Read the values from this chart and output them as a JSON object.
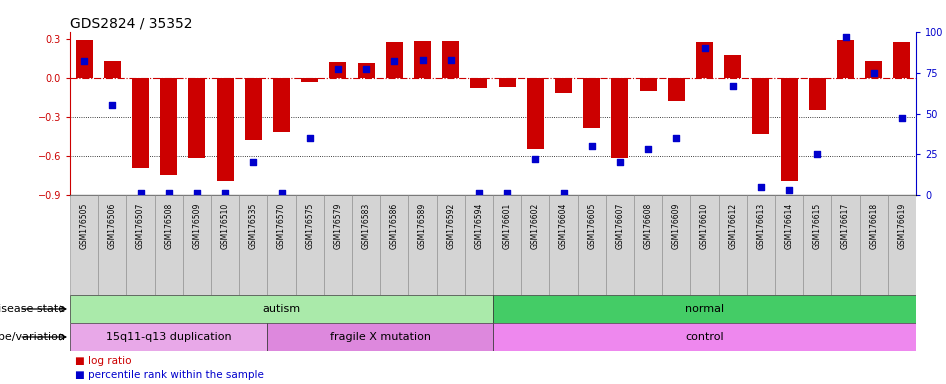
{
  "title": "GDS2824 / 35352",
  "samples": [
    "GSM176505",
    "GSM176506",
    "GSM176507",
    "GSM176508",
    "GSM176509",
    "GSM176510",
    "GSM176535",
    "GSM176570",
    "GSM176575",
    "GSM176579",
    "GSM176583",
    "GSM176586",
    "GSM176589",
    "GSM176592",
    "GSM176594",
    "GSM176601",
    "GSM176602",
    "GSM176604",
    "GSM176605",
    "GSM176607",
    "GSM176608",
    "GSM176609",
    "GSM176610",
    "GSM176612",
    "GSM176613",
    "GSM176614",
    "GSM176615",
    "GSM176617",
    "GSM176618",
    "GSM176619"
  ],
  "log_ratio": [
    0.29,
    0.13,
    -0.69,
    -0.75,
    -0.62,
    -0.79,
    -0.48,
    -0.42,
    -0.03,
    0.12,
    0.11,
    0.27,
    0.28,
    0.28,
    -0.08,
    -0.07,
    -0.55,
    -0.12,
    -0.39,
    -0.62,
    -0.1,
    -0.18,
    0.27,
    0.17,
    -0.43,
    -0.79,
    -0.25,
    0.29,
    0.13,
    0.27
  ],
  "percentile": [
    82,
    55,
    1,
    1,
    1,
    1,
    20,
    1,
    35,
    77,
    77,
    82,
    83,
    83,
    1,
    1,
    22,
    1,
    30,
    20,
    28,
    35,
    90,
    67,
    5,
    3,
    25,
    97,
    75,
    47
  ],
  "disease_state_groups": [
    {
      "label": "autism",
      "start": 0,
      "end": 15,
      "color": "#AAEAAA"
    },
    {
      "label": "normal",
      "start": 15,
      "end": 30,
      "color": "#44CC66"
    }
  ],
  "genotype_groups": [
    {
      "label": "15q11-q13 duplication",
      "start": 0,
      "end": 7,
      "color": "#E8A8E8"
    },
    {
      "label": "fragile X mutation",
      "start": 7,
      "end": 15,
      "color": "#DD88DD"
    },
    {
      "label": "control",
      "start": 15,
      "end": 30,
      "color": "#EE88EE"
    }
  ],
  "bar_color": "#CC0000",
  "dot_color": "#0000CC",
  "zero_line_color": "#CC0000",
  "background_color": "#FFFFFF",
  "ylim_left": [
    -0.9,
    0.35
  ],
  "ylim_right": [
    0,
    100
  ],
  "yticks_left": [
    0.3,
    0.0,
    -0.3,
    -0.6,
    -0.9
  ],
  "yticks_right": [
    100,
    75,
    50,
    25,
    0
  ],
  "hgrid_values": [
    -0.3,
    -0.6
  ],
  "legend_items": [
    {
      "label": "log ratio",
      "color": "#CC0000"
    },
    {
      "label": "percentile rank within the sample",
      "color": "#0000CC"
    }
  ],
  "disease_state_label": "disease state",
  "genotype_label": "genotype/variation"
}
